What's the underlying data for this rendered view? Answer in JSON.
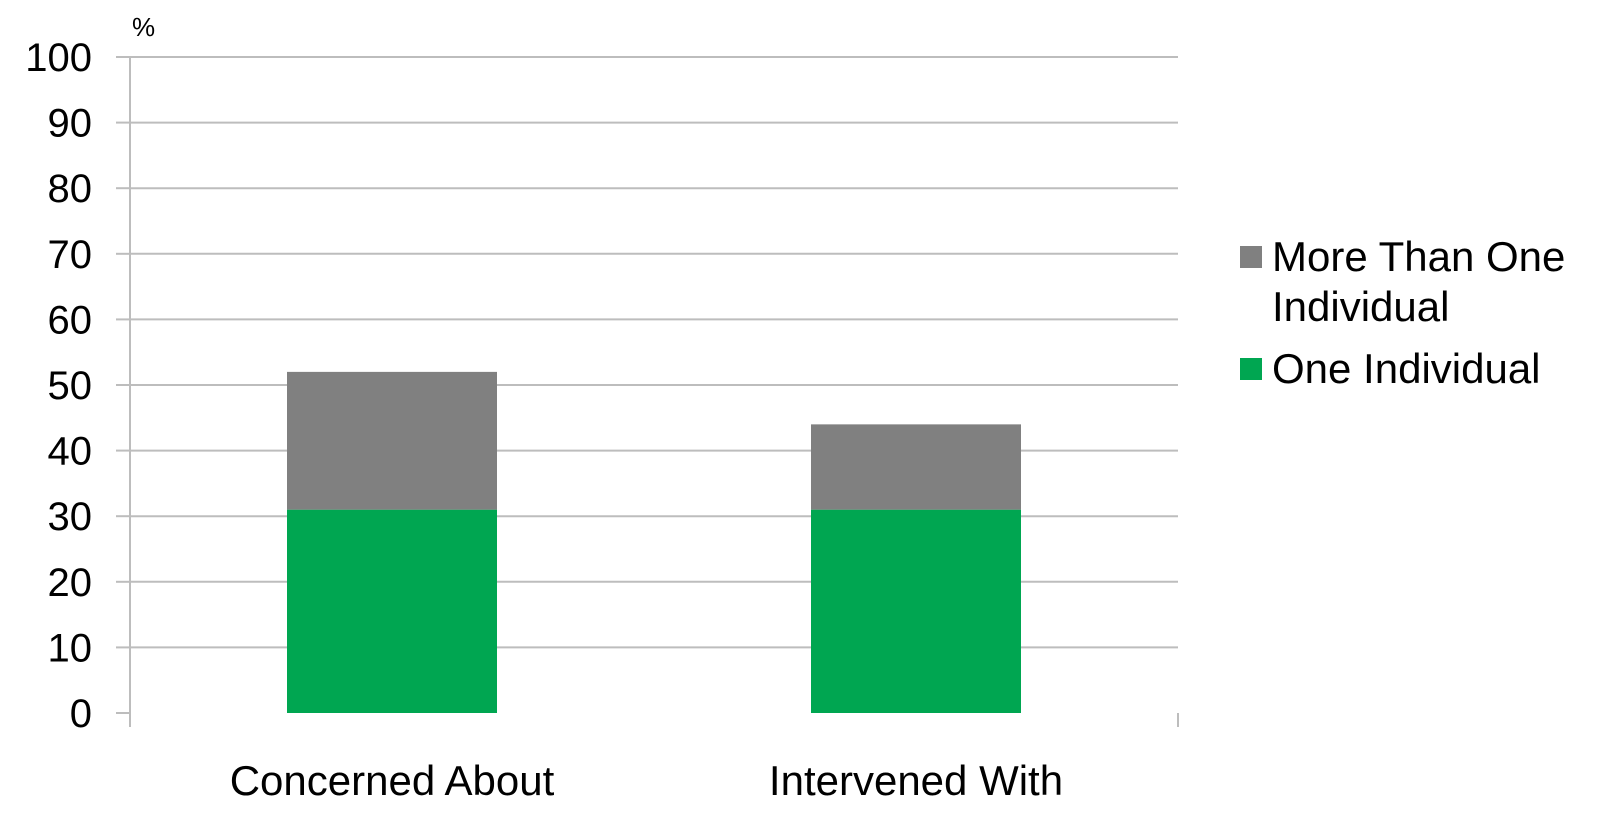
{
  "chart_data": {
    "type": "bar",
    "stacked": true,
    "unit_label": "%",
    "categories": [
      "Concerned About",
      "Intervened With"
    ],
    "series": [
      {
        "name": "One Individual",
        "values": [
          31,
          31
        ],
        "color": "#00a651"
      },
      {
        "name": "More Than One Individual",
        "values": [
          21,
          13
        ],
        "color": "#808080"
      }
    ],
    "ylim": [
      0,
      100
    ],
    "yticks": [
      0,
      10,
      20,
      30,
      40,
      50,
      60,
      70,
      80,
      90,
      100
    ],
    "legend_order": [
      1,
      0
    ],
    "legend_placement": "right",
    "grid": true,
    "title": "",
    "xlabel": "",
    "ylabel": ""
  }
}
